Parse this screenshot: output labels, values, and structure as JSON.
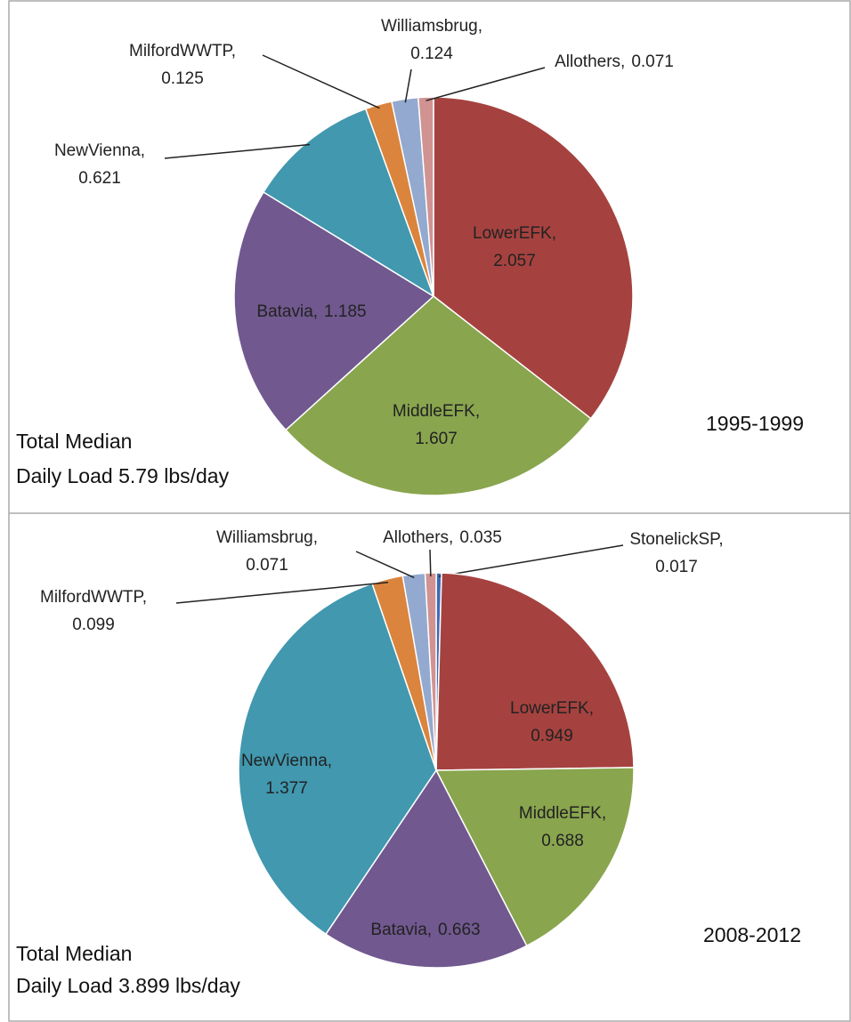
{
  "chart_data": [
    {
      "type": "pie",
      "categories": [
        "LowerEFK,",
        "MiddleEFK,",
        "Batavia,",
        "NewVienna,",
        "MilfordWWTP,",
        "Williamsbrug,",
        "Allothers,"
      ],
      "values": [
        2.057,
        1.607,
        1.185,
        0.621,
        0.125,
        0.124,
        0.071
      ],
      "colors": [
        "#a5423f",
        "#89a54e",
        "#71588f",
        "#4198af",
        "#db843d",
        "#93a9cf",
        "#d19392"
      ],
      "annotations": [
        "1995-1999",
        "Total Median",
        "Daily Load 5.79 lbs/day"
      ]
    },
    {
      "type": "pie",
      "categories": [
        "StonelickSP,",
        "LowerEFK,",
        "MiddleEFK,",
        "Batavia,",
        "NewVienna,",
        "MilfordWWTP,",
        "Williamsbrug,",
        "Allothers,"
      ],
      "values": [
        0.017,
        0.949,
        0.688,
        0.663,
        1.377,
        0.099,
        0.071,
        0.035
      ],
      "colors": [
        "#3d6bb5",
        "#a5423f",
        "#89a54e",
        "#71588f",
        "#4198af",
        "#db843d",
        "#93a9cf",
        "#d19392"
      ],
      "annotations": [
        "2008-2012",
        "Total Median",
        "Daily Load 3.899 lbs/day"
      ]
    }
  ]
}
